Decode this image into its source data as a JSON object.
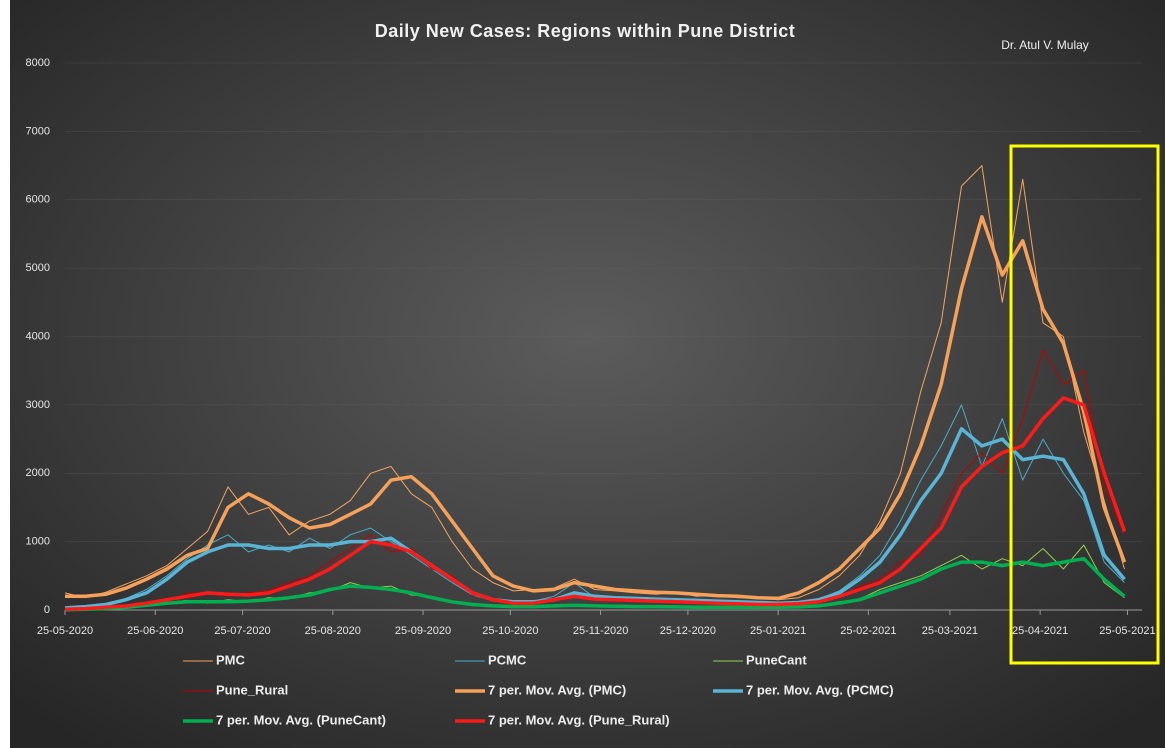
{
  "chart_data": {
    "type": "line",
    "title": "Daily New Cases: Regions within Pune District",
    "author": "Dr. Atul V. Mulay",
    "x": [
      "2020-05-25",
      "2020-06-01",
      "2020-06-08",
      "2020-06-15",
      "2020-06-22",
      "2020-06-29",
      "2020-07-06",
      "2020-07-13",
      "2020-07-20",
      "2020-07-27",
      "2020-08-03",
      "2020-08-10",
      "2020-08-17",
      "2020-08-24",
      "2020-08-31",
      "2020-09-07",
      "2020-09-14",
      "2020-09-21",
      "2020-09-28",
      "2020-10-05",
      "2020-10-12",
      "2020-10-19",
      "2020-10-26",
      "2020-11-02",
      "2020-11-09",
      "2020-11-16",
      "2020-11-23",
      "2020-11-30",
      "2020-12-07",
      "2020-12-14",
      "2020-12-21",
      "2020-12-28",
      "2021-01-04",
      "2021-01-11",
      "2021-01-18",
      "2021-01-25",
      "2021-02-01",
      "2021-02-08",
      "2021-02-15",
      "2021-02-22",
      "2021-03-01",
      "2021-03-08",
      "2021-03-15",
      "2021-03-22",
      "2021-03-29",
      "2021-04-05",
      "2021-04-12",
      "2021-04-19",
      "2021-04-26",
      "2021-05-03",
      "2021-05-10",
      "2021-05-17",
      "2021-05-24"
    ],
    "xlim": [
      "2020-05-25",
      "2021-05-30"
    ],
    "xticks": [
      {
        "value": "2020-05-25",
        "label": "25-05-2020"
      },
      {
        "value": "2020-06-25",
        "label": "25-06-2020"
      },
      {
        "value": "2020-07-25",
        "label": "25-07-2020"
      },
      {
        "value": "2020-08-25",
        "label": "25-08-2020"
      },
      {
        "value": "2020-09-25",
        "label": "25-09-2020"
      },
      {
        "value": "2020-10-25",
        "label": "25-10-2020"
      },
      {
        "value": "2020-11-25",
        "label": "25-11-2020"
      },
      {
        "value": "2020-12-25",
        "label": "25-12-2020"
      },
      {
        "value": "2021-01-25",
        "label": "25-01-2021"
      },
      {
        "value": "2021-02-25",
        "label": "25-02-2021"
      },
      {
        "value": "2021-03-25",
        "label": "25-03-2021"
      },
      {
        "value": "2021-04-25",
        "label": "25-04-2021"
      },
      {
        "value": "2021-05-25",
        "label": "25-05-2021"
      }
    ],
    "ylim": [
      0,
      8000
    ],
    "yticks": [
      0,
      1000,
      2000,
      3000,
      4000,
      5000,
      6000,
      7000,
      8000
    ],
    "grid": true,
    "legend": "bottom",
    "series": [
      {
        "name": "PMC",
        "color": "#f4a460",
        "width": 1,
        "values": [
          250,
          180,
          260,
          380,
          500,
          650,
          900,
          1150,
          1800,
          1400,
          1500,
          1100,
          1300,
          1400,
          1600,
          2000,
          2100,
          1700,
          1500,
          1000,
          600,
          400,
          280,
          300,
          320,
          450,
          300,
          280,
          250,
          230,
          260,
          200,
          220,
          180,
          190,
          150,
          180,
          300,
          500,
          800,
          1300,
          2000,
          3200,
          4200,
          6200,
          6500,
          4500,
          6300,
          4200,
          4000,
          2600,
          1600,
          600
        ]
      },
      {
        "name": "PCMC",
        "color": "#4bacc6",
        "width": 1,
        "values": [
          40,
          60,
          70,
          170,
          300,
          500,
          750,
          950,
          1100,
          850,
          950,
          850,
          1050,
          900,
          1100,
          1200,
          1000,
          800,
          600,
          400,
          220,
          140,
          110,
          130,
          200,
          400,
          180,
          170,
          160,
          150,
          140,
          150,
          120,
          110,
          100,
          90,
          120,
          160,
          280,
          500,
          800,
          1300,
          1900,
          2400,
          3000,
          2100,
          2800,
          1900,
          2500,
          2000,
          1600,
          700,
          400
        ]
      },
      {
        "name": "PuneCant",
        "color": "#92d050",
        "width": 1,
        "values": [
          8,
          12,
          25,
          50,
          80,
          110,
          140,
          100,
          150,
          120,
          180,
          170,
          250,
          280,
          400,
          320,
          350,
          220,
          200,
          130,
          90,
          50,
          60,
          40,
          70,
          80,
          50,
          60,
          45,
          55,
          40,
          45,
          35,
          45,
          35,
          40,
          50,
          70,
          120,
          160,
          300,
          400,
          500,
          650,
          800,
          600,
          750,
          650,
          900,
          600,
          950,
          400,
          180
        ]
      },
      {
        "name": "Pune_Rural",
        "color": "#c00000",
        "width": 1,
        "values": [
          5,
          15,
          50,
          50,
          120,
          130,
          240,
          260,
          200,
          250,
          280,
          400,
          500,
          700,
          900,
          1100,
          850,
          900,
          600,
          500,
          220,
          170,
          90,
          110,
          170,
          220,
          150,
          160,
          130,
          140,
          110,
          120,
          90,
          100,
          70,
          90,
          80,
          140,
          180,
          350,
          450,
          700,
          800,
          1400,
          2000,
          2300,
          2000,
          2800,
          3800,
          3300,
          3500,
          1800,
          1100
        ]
      },
      {
        "name": "7 per. Mov. Avg. (PMC)",
        "color": "#f5a15a",
        "width": 3.5,
        "values": [
          200,
          200,
          230,
          320,
          450,
          600,
          800,
          900,
          1500,
          1700,
          1550,
          1350,
          1200,
          1250,
          1400,
          1550,
          1900,
          1950,
          1700,
          1300,
          900,
          500,
          350,
          280,
          300,
          400,
          350,
          300,
          280,
          260,
          250,
          230,
          210,
          200,
          180,
          170,
          250,
          400,
          600,
          900,
          1200,
          1700,
          2400,
          3300,
          4700,
          5750,
          4900,
          5400,
          4400,
          3900,
          2900,
          1500,
          700
        ]
      },
      {
        "name": "7 per. Mov. Avg. (PCMC)",
        "color": "#5ab4d6",
        "width": 3.5,
        "values": [
          30,
          50,
          80,
          150,
          250,
          450,
          700,
          850,
          950,
          950,
          900,
          900,
          950,
          950,
          1000,
          1000,
          1050,
          850,
          650,
          450,
          250,
          150,
          120,
          120,
          150,
          250,
          200,
          180,
          170,
          160,
          150,
          140,
          130,
          120,
          110,
          100,
          110,
          150,
          250,
          450,
          700,
          1100,
          1600,
          2000,
          2650,
          2400,
          2500,
          2200,
          2250,
          2200,
          1700,
          800,
          450
        ]
      },
      {
        "name": "7 per. Mov. Avg. (PuneCant)",
        "color": "#00b050",
        "width": 3.5,
        "values": [
          5,
          10,
          20,
          40,
          70,
          100,
          120,
          120,
          120,
          130,
          150,
          180,
          220,
          300,
          350,
          330,
          300,
          250,
          180,
          120,
          80,
          60,
          50,
          50,
          60,
          70,
          60,
          55,
          50,
          50,
          45,
          40,
          40,
          40,
          40,
          40,
          45,
          60,
          100,
          150,
          250,
          350,
          450,
          600,
          700,
          700,
          650,
          700,
          650,
          700,
          750,
          450,
          200
        ]
      },
      {
        "name": "7 per. Mov. Avg. (Pune_Rural)",
        "color": "#ff1a1a",
        "width": 3.5,
        "values": [
          10,
          20,
          40,
          60,
          100,
          150,
          200,
          250,
          230,
          220,
          250,
          350,
          450,
          600,
          800,
          1000,
          950,
          850,
          650,
          450,
          250,
          150,
          100,
          100,
          150,
          200,
          160,
          150,
          140,
          130,
          120,
          110,
          100,
          90,
          80,
          80,
          90,
          120,
          200,
          300,
          400,
          600,
          900,
          1200,
          1800,
          2100,
          2300,
          2400,
          2800,
          3100,
          3000,
          2000,
          1150
        ]
      }
    ]
  }
}
